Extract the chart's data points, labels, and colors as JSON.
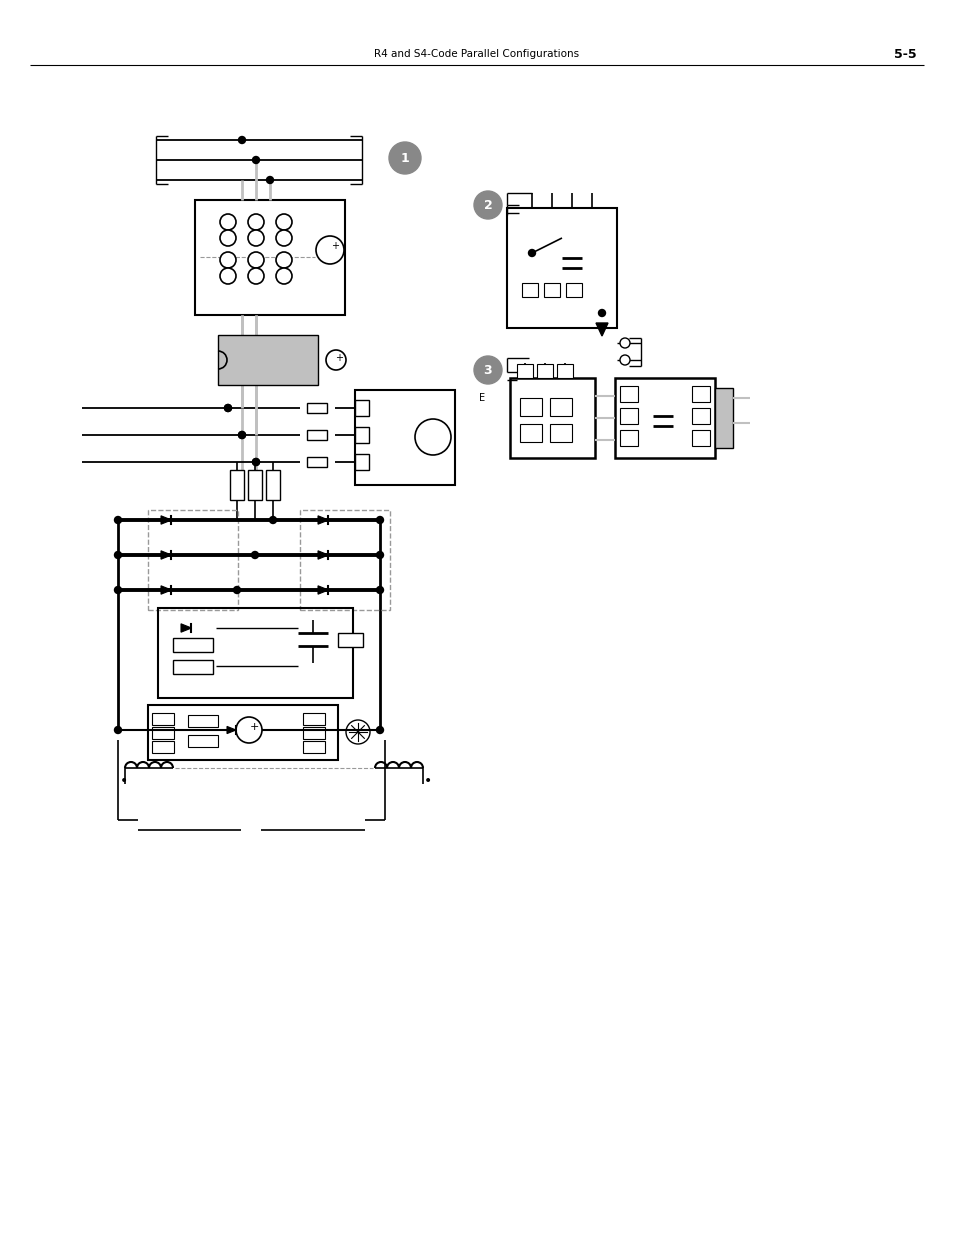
{
  "title": "R4 and S4-Code Parallel Configurations",
  "page_num": "5-5",
  "bg_color": "#ffffff",
  "line_color": "#000000",
  "gray_color": "#c0c0c0",
  "dashed_color": "#999999",
  "badge_color": "#888888",
  "title_fontsize": 7.5,
  "pagenum_fontsize": 9
}
